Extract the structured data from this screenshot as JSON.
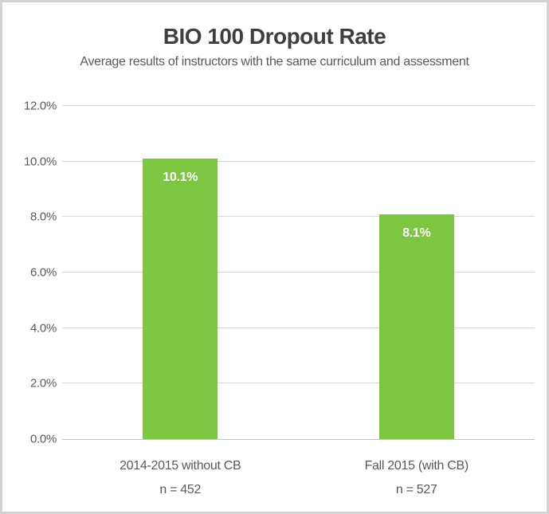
{
  "header": {
    "title": "BIO 100 Dropout Rate",
    "subtitle": "Average results of instructors with the same curriculum and assessment"
  },
  "chart_data": {
    "type": "bar",
    "title": "BIO 100 Dropout Rate",
    "subtitle": "Average results of instructors with the same curriculum and assessment",
    "categories": [
      "2014-2015 without CB",
      "Fall 2015 (with CB)"
    ],
    "category_sublabels": [
      "n = 452",
      "n = 527"
    ],
    "values": [
      10.1,
      8.1
    ],
    "value_labels": [
      "10.1%",
      "8.1%"
    ],
    "ylim": [
      0,
      12
    ],
    "ytick_step": 2,
    "ytick_labels": [
      "0.0%",
      "2.0%",
      "4.0%",
      "6.0%",
      "8.0%",
      "10.0%",
      "12.0%"
    ],
    "grid": true,
    "legend": "none",
    "bar_color": "#7dc642",
    "value_label_color": "#ffffff",
    "text_color": "#595959",
    "title_color": "#3f3f3f",
    "gridline_color": "#d9d9d9",
    "frame_border_color": "#d2d2d2"
  }
}
